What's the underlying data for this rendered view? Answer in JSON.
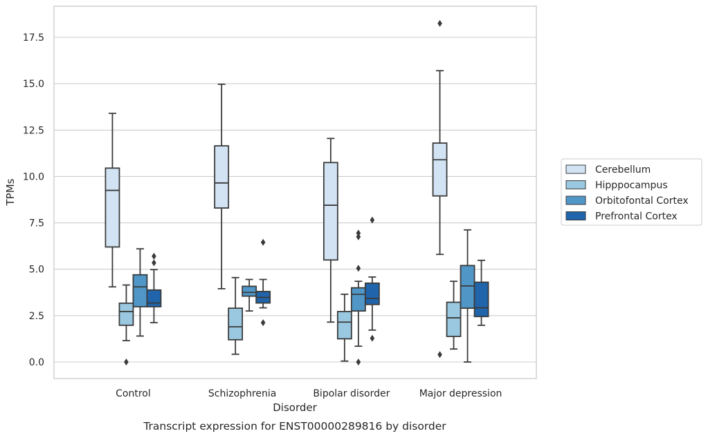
{
  "caption": "Transcript expression for ENST00000289816 by disorder",
  "chart_data": {
    "type": "box",
    "xlabel": "Disorder",
    "ylabel": "TPMs",
    "categories": [
      "Control",
      "Schizophrenia",
      "Bipolar disorder",
      "Major depression"
    ],
    "ylim": [
      -0.9,
      19.2
    ],
    "yticks": [
      0.0,
      2.5,
      5.0,
      7.5,
      10.0,
      12.5,
      15.0,
      17.5
    ],
    "ytick_labels": [
      "0.0",
      "2.5",
      "5.0",
      "7.5",
      "10.0",
      "12.5",
      "15.0",
      "17.5"
    ],
    "grid": "horizontal",
    "legend_position": "right",
    "series": [
      {
        "name": "Cerebellum",
        "color": "#d2e3f3",
        "boxes": [
          {
            "whisker_low": 4.05,
            "q1": 6.2,
            "median": 9.25,
            "q3": 10.45,
            "whisker_high": 13.4,
            "outliers": []
          },
          {
            "whisker_low": 3.95,
            "q1": 8.3,
            "median": 9.65,
            "q3": 11.65,
            "whisker_high": 14.97,
            "outliers": []
          },
          {
            "whisker_low": 2.15,
            "q1": 5.5,
            "median": 8.45,
            "q3": 10.75,
            "whisker_high": 12.05,
            "outliers": []
          },
          {
            "whisker_low": 5.8,
            "q1": 8.95,
            "median": 10.9,
            "q3": 11.8,
            "whisker_high": 15.7,
            "outliers": [
              0.4,
              18.25
            ]
          }
        ]
      },
      {
        "name": "Hipppocampus",
        "color": "#9ac8e0",
        "boxes": [
          {
            "whisker_low": 1.15,
            "q1": 1.98,
            "median": 2.72,
            "q3": 3.17,
            "whisker_high": 4.15,
            "outliers": [
              0.0
            ]
          },
          {
            "whisker_low": 0.42,
            "q1": 1.2,
            "median": 1.9,
            "q3": 2.9,
            "whisker_high": 4.55,
            "outliers": []
          },
          {
            "whisker_low": 0.05,
            "q1": 1.25,
            "median": 2.15,
            "q3": 2.72,
            "whisker_high": 3.65,
            "outliers": []
          },
          {
            "whisker_low": 0.7,
            "q1": 1.38,
            "median": 2.38,
            "q3": 3.22,
            "whisker_high": 4.35,
            "outliers": []
          }
        ]
      },
      {
        "name": "Orbitofontal Cortex",
        "color": "#5096c7",
        "boxes": [
          {
            "whisker_low": 1.4,
            "q1": 2.98,
            "median": 4.05,
            "q3": 4.7,
            "whisker_high": 6.1,
            "outliers": []
          },
          {
            "whisker_low": 2.75,
            "q1": 3.55,
            "median": 3.75,
            "q3": 4.08,
            "whisker_high": 4.45,
            "outliers": []
          },
          {
            "whisker_low": 0.85,
            "q1": 2.75,
            "median": 3.65,
            "q3": 4.0,
            "whisker_high": 4.35,
            "outliers": [
              0.0,
              5.05,
              6.75,
              6.95
            ]
          },
          {
            "whisker_low": 0.0,
            "q1": 2.9,
            "median": 4.1,
            "q3": 5.2,
            "whisker_high": 7.12,
            "outliers": []
          }
        ]
      },
      {
        "name": "Prefrontal Cortex",
        "color": "#2065ab",
        "boxes": [
          {
            "whisker_low": 2.12,
            "q1": 2.98,
            "median": 3.18,
            "q3": 3.88,
            "whisker_high": 4.98,
            "outliers": [
              5.35,
              5.7
            ]
          },
          {
            "whisker_low": 2.92,
            "q1": 3.18,
            "median": 3.48,
            "q3": 3.8,
            "whisker_high": 4.45,
            "outliers": [
              2.12,
              6.45
            ]
          },
          {
            "whisker_low": 1.72,
            "q1": 3.1,
            "median": 3.42,
            "q3": 4.25,
            "whisker_high": 4.58,
            "outliers": [
              1.28,
              7.65
            ]
          },
          {
            "whisker_low": 1.98,
            "q1": 2.45,
            "median": 2.92,
            "q3": 4.3,
            "whisker_high": 5.48,
            "outliers": []
          }
        ]
      }
    ]
  }
}
